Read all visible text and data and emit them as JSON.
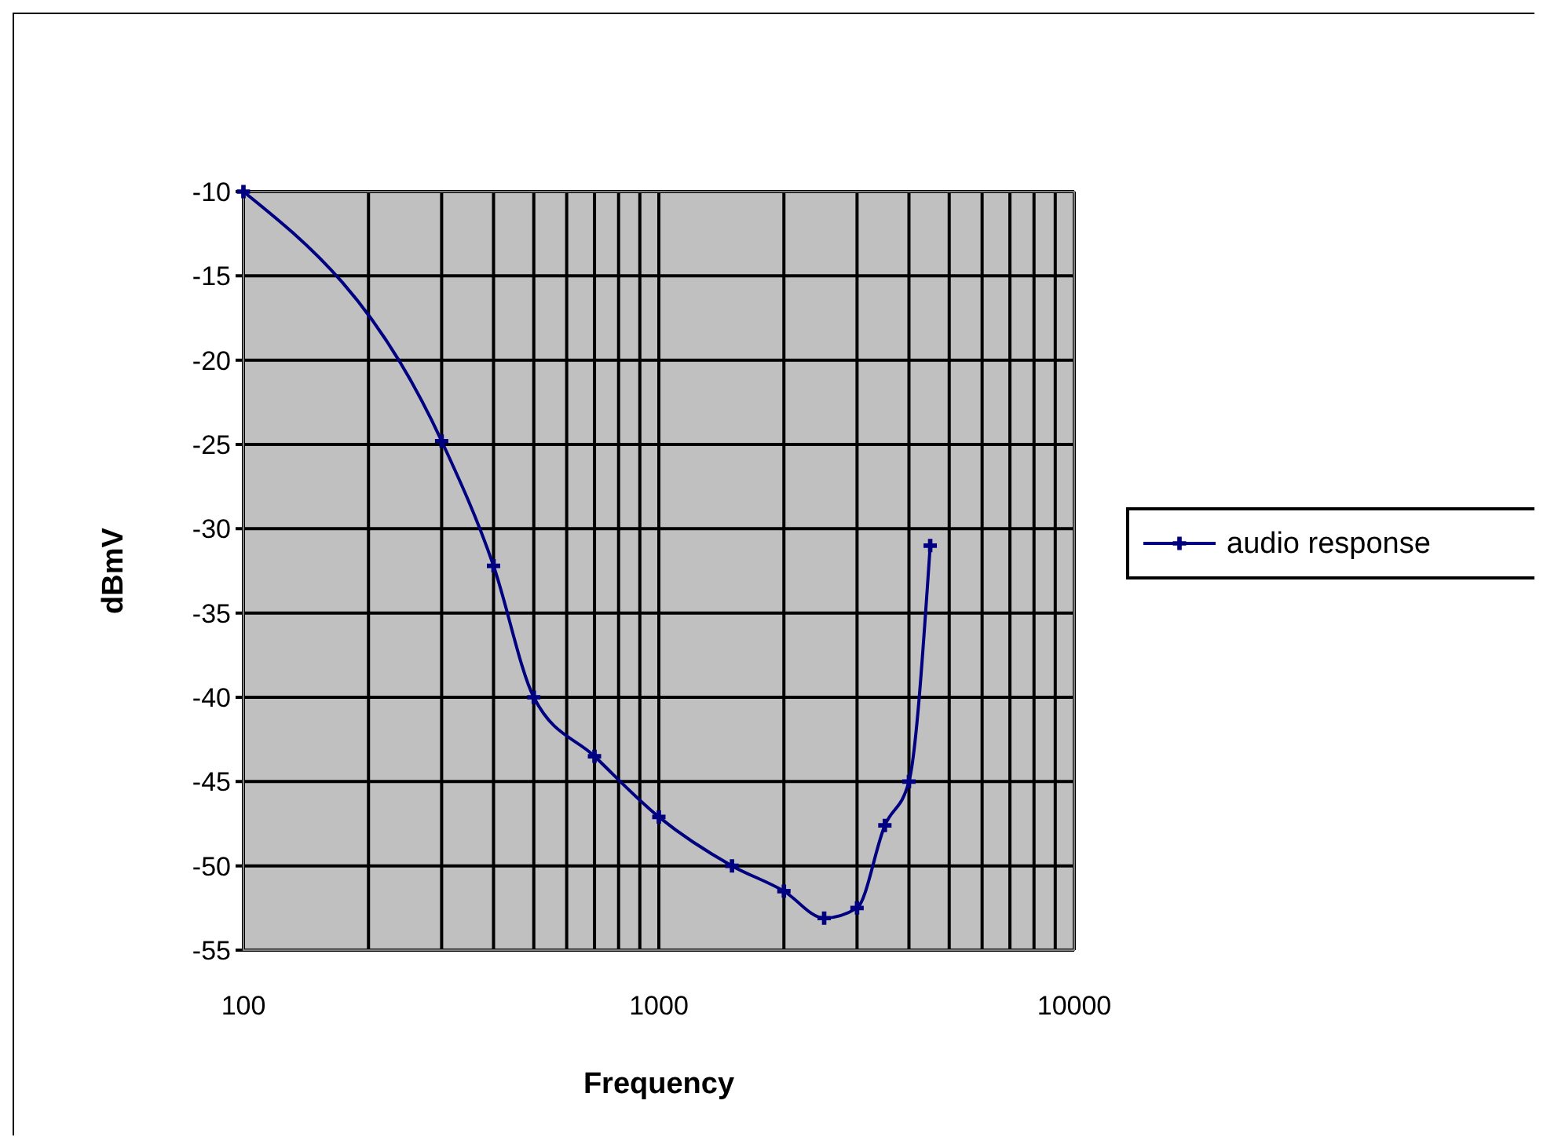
{
  "chart_data": {
    "type": "line",
    "xlabel": "Frequency",
    "ylabel": "dBmV",
    "x": [
      100,
      300,
      400,
      500,
      700,
      1000,
      1500,
      2000,
      2500,
      3000,
      3500,
      4000,
      4500
    ],
    "series": [
      {
        "name": "audio response",
        "color": "#000080",
        "values": [
          -10,
          -24.8,
          -32.2,
          -40,
          -43.5,
          -47.1,
          -50,
          -51.5,
          -53.1,
          -52.5,
          -47.6,
          -45,
          -31
        ]
      }
    ],
    "log": "x",
    "xlim": [
      100,
      10000
    ],
    "ylim": [
      -55,
      -10
    ],
    "xticks": [
      100,
      {
        "value": 200,
        "label": null
      },
      {
        "value": 300,
        "label": null
      },
      {
        "value": 400,
        "label": null
      },
      {
        "value": 500,
        "label": null
      },
      {
        "value": 600,
        "label": null
      },
      {
        "value": 700,
        "label": null
      },
      {
        "value": 800,
        "label": null
      },
      {
        "value": 900,
        "label": null
      },
      1000,
      {
        "value": 2000,
        "label": null
      },
      {
        "value": 3000,
        "label": null
      },
      {
        "value": 4000,
        "label": null
      },
      {
        "value": 5000,
        "label": null
      },
      {
        "value": 6000,
        "label": null
      },
      {
        "value": 7000,
        "label": null
      },
      {
        "value": 8000,
        "label": null
      },
      {
        "value": 9000,
        "label": null
      },
      10000
    ],
    "yticks": [
      -10,
      -15,
      -20,
      -25,
      -30,
      -35,
      -40,
      -45,
      -50,
      -55
    ],
    "grid": true,
    "legend": "right",
    "marker": "cross",
    "line_style": "solid"
  }
}
